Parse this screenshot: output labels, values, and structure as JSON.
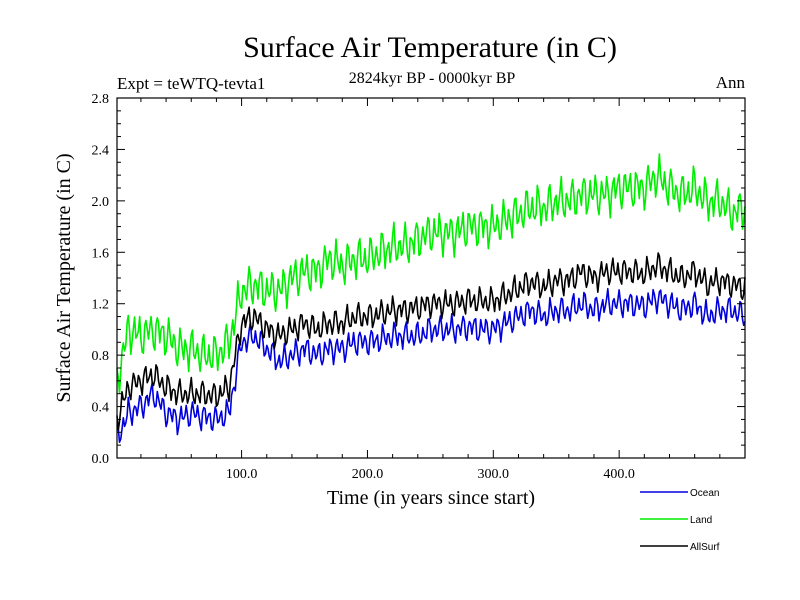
{
  "chart_data": {
    "type": "line",
    "title": "Surface Air Temperature (in C)",
    "subtitle": "2824kyr BP - 0000kyr BP",
    "left_label": "Expt = teWTQ-tevta1",
    "right_label": "Ann",
    "xlabel": "Time (in years since start)",
    "ylabel": "Surface Air Temperature (in C)",
    "xlim": [
      1,
      500
    ],
    "ylim": [
      0.0,
      2.8
    ],
    "x_ticks": [
      100,
      200,
      300,
      400
    ],
    "x_tick_labels": [
      "100.0",
      "200.0",
      "300.0",
      "400.0"
    ],
    "y_ticks": [
      0.0,
      0.4,
      0.8,
      1.2,
      1.6,
      2.0,
      2.4,
      2.8
    ],
    "y_tick_labels": [
      "0.0",
      "0.4",
      "0.8",
      "1.2",
      "1.6",
      "2.0",
      "2.4",
      "2.8"
    ],
    "legend_position": "bottom-right",
    "series": [
      {
        "name": "Ocean",
        "color": "#0000dd",
        "x": [
          1,
          10,
          20,
          30,
          40,
          50,
          60,
          70,
          80,
          90,
          100,
          110,
          120,
          130,
          140,
          150,
          160,
          170,
          180,
          190,
          200,
          210,
          220,
          230,
          240,
          250,
          260,
          270,
          280,
          290,
          300,
          310,
          320,
          330,
          340,
          350,
          360,
          370,
          380,
          390,
          400,
          410,
          420,
          430,
          440,
          450,
          460,
          470,
          480,
          490,
          500
        ],
        "values": [
          0.15,
          0.35,
          0.4,
          0.5,
          0.35,
          0.3,
          0.35,
          0.32,
          0.3,
          0.35,
          0.9,
          0.95,
          0.85,
          0.75,
          0.8,
          0.85,
          0.8,
          0.85,
          0.85,
          0.9,
          0.9,
          0.92,
          0.95,
          0.95,
          0.95,
          1.0,
          1.0,
          1.0,
          1.02,
          1.0,
          1.0,
          1.05,
          1.1,
          1.15,
          1.1,
          1.15,
          1.15,
          1.2,
          1.15,
          1.2,
          1.2,
          1.2,
          1.18,
          1.25,
          1.2,
          1.15,
          1.2,
          1.1,
          1.15,
          1.15,
          1.1
        ]
      },
      {
        "name": "Land",
        "color": "#00ee00",
        "x": [
          1,
          10,
          20,
          30,
          40,
          50,
          60,
          70,
          80,
          90,
          100,
          110,
          120,
          130,
          140,
          150,
          160,
          170,
          180,
          190,
          200,
          210,
          220,
          230,
          240,
          250,
          260,
          270,
          280,
          290,
          300,
          310,
          320,
          330,
          340,
          350,
          360,
          370,
          380,
          390,
          400,
          410,
          420,
          430,
          440,
          450,
          460,
          470,
          480,
          490,
          500
        ],
        "values": [
          0.6,
          1.0,
          0.95,
          1.0,
          0.95,
          0.85,
          0.85,
          0.8,
          0.8,
          0.9,
          1.3,
          1.35,
          1.3,
          1.3,
          1.4,
          1.45,
          1.45,
          1.55,
          1.5,
          1.55,
          1.55,
          1.6,
          1.65,
          1.65,
          1.7,
          1.75,
          1.75,
          1.75,
          1.8,
          1.8,
          1.8,
          1.85,
          1.9,
          1.95,
          1.95,
          2.0,
          2.0,
          2.05,
          2.05,
          2.05,
          2.1,
          2.1,
          2.1,
          2.2,
          2.1,
          2.05,
          2.1,
          2.0,
          2.0,
          1.9,
          1.95
        ]
      },
      {
        "name": "AllSurf",
        "color": "#000000",
        "x": [
          1,
          10,
          20,
          30,
          40,
          50,
          60,
          70,
          80,
          90,
          100,
          110,
          120,
          130,
          140,
          150,
          160,
          170,
          180,
          190,
          200,
          210,
          220,
          230,
          240,
          250,
          260,
          270,
          280,
          290,
          300,
          310,
          320,
          330,
          340,
          350,
          360,
          370,
          380,
          390,
          400,
          410,
          420,
          430,
          440,
          450,
          460,
          470,
          480,
          490,
          500
        ],
        "values": [
          0.3,
          0.55,
          0.6,
          0.65,
          0.55,
          0.5,
          0.5,
          0.5,
          0.48,
          0.55,
          1.05,
          1.1,
          1.0,
          0.95,
          1.0,
          1.05,
          1.0,
          1.05,
          1.05,
          1.1,
          1.1,
          1.12,
          1.15,
          1.15,
          1.17,
          1.2,
          1.2,
          1.2,
          1.23,
          1.22,
          1.22,
          1.27,
          1.32,
          1.37,
          1.33,
          1.38,
          1.38,
          1.45,
          1.4,
          1.45,
          1.45,
          1.45,
          1.43,
          1.5,
          1.45,
          1.4,
          1.45,
          1.35,
          1.38,
          1.35,
          1.32
        ]
      }
    ]
  }
}
